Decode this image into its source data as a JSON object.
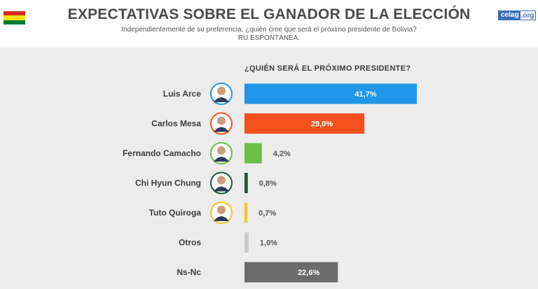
{
  "header": {
    "title": "EXPECTATIVAS SOBRE EL GANADOR DE LA ELECCIÓN",
    "subtitle": "Independientemente de su preferencia, ¿quién cree que será el próximo presidente de Bolivia?",
    "subtitle2": "RU ESPONTÁNEA.",
    "logo_main": "celag",
    "logo_suffix": ".org",
    "flag_colors": [
      "#d52b1e",
      "#f9e300",
      "#007934"
    ]
  },
  "chart_data": {
    "type": "bar",
    "orientation": "horizontal",
    "title": "¿QUIÉN SERÁ EL PRÓXIMO PRESIDENTE?",
    "categories": [
      "Luis Arce",
      "Carlos Mesa",
      "Fernando Camacho",
      "Chi Hyun Chung",
      "Tuto Quiroga",
      "Otros",
      "Ns-Nc"
    ],
    "values": [
      41.7,
      29.0,
      4.2,
      0.8,
      0.7,
      1.0,
      22.6
    ],
    "value_labels": [
      "41,7%",
      "29,0%",
      "4,2%",
      "0,8%",
      "0,7%",
      "1,0%",
      "22,6%"
    ],
    "colors": [
      "#2196e8",
      "#f4511e",
      "#6abf47",
      "#1e5631",
      "#f3c428",
      "#cccccc",
      "#6b6b6b"
    ],
    "avatars": [
      true,
      true,
      true,
      true,
      true,
      false,
      false
    ],
    "xlim": [
      0,
      100
    ],
    "grid": false,
    "legend": "none"
  }
}
